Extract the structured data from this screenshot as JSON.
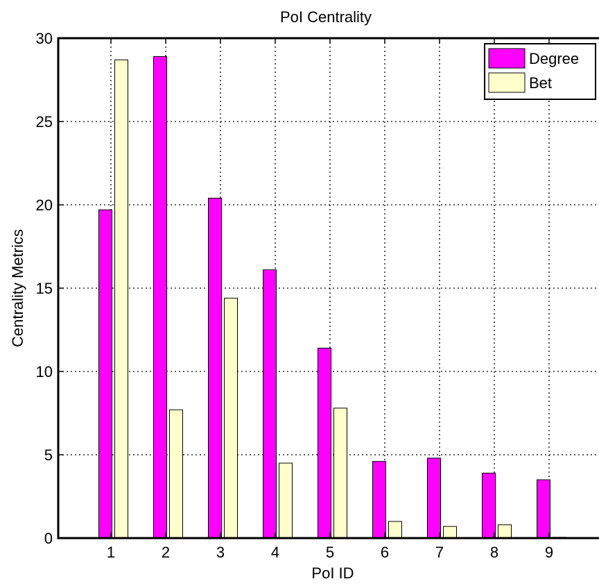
{
  "chart_data": {
    "type": "bar",
    "title": "PoI Centrality",
    "xlabel": "PoI ID",
    "ylabel": "Centrality Metrics",
    "categories": [
      "1",
      "2",
      "3",
      "4",
      "5",
      "6",
      "7",
      "8",
      "9"
    ],
    "series": [
      {
        "name": "Degree",
        "color": "#ff00ff",
        "values": [
          19.7,
          28.9,
          20.4,
          16.1,
          11.4,
          4.6,
          4.8,
          3.9,
          3.5
        ]
      },
      {
        "name": "Bet",
        "color": "#ffffcc",
        "values": [
          28.7,
          7.7,
          14.4,
          4.5,
          7.8,
          1.0,
          0.7,
          0.8,
          0.05
        ]
      }
    ],
    "ylim": [
      0,
      30
    ],
    "yticks": [
      0,
      5,
      10,
      15,
      20,
      25,
      30
    ],
    "grid": true,
    "legend_position": "top-right"
  }
}
